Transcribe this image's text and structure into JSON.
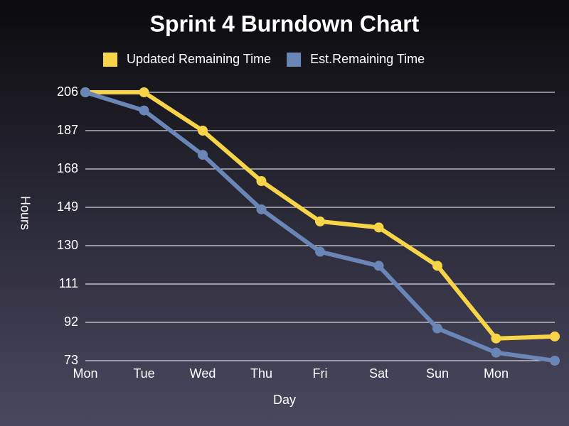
{
  "chart_data": {
    "type": "line",
    "title": "Sprint 4 Burndown Chart",
    "x_label": "Day",
    "y_label": "Hours",
    "categories": [
      "Mon",
      "Tue",
      "Wed",
      "Thu",
      "Fri",
      "Sat",
      "Sun",
      "Mon",
      null
    ],
    "series": [
      {
        "name": "Updated Remaining Time",
        "color": "#f8d448",
        "values": [
          206,
          206,
          187,
          162,
          142,
          139,
          120,
          84,
          85
        ]
      },
      {
        "name": "Est.Remaining Time",
        "color": "#6a86b6",
        "values": [
          206,
          197,
          175,
          148,
          127,
          120,
          89,
          77,
          73
        ]
      }
    ],
    "ylim": [
      73,
      206
    ],
    "yticks": [
      73,
      92,
      111,
      130,
      149,
      168,
      187,
      206
    ],
    "grid": true,
    "legend": "top"
  }
}
